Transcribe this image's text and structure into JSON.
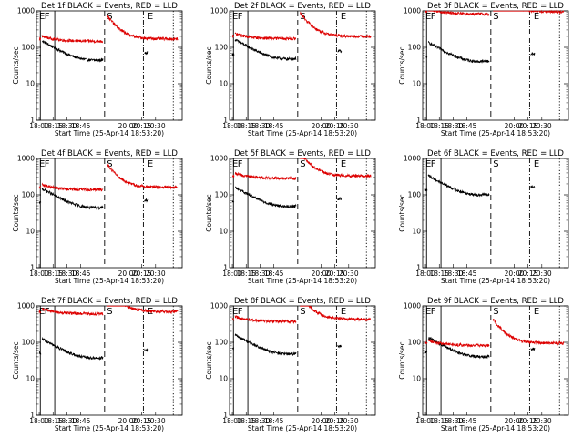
{
  "colors": {
    "events": "#000000",
    "lld": "#dd0000",
    "background": "#ffffff",
    "axes": "#000000"
  },
  "axis_common": {
    "xlabel": "Start Time (25-Apr-14 18:53:20)",
    "ylabel": "Counts/sec",
    "x_tick_labels": [
      "18:00",
      "18:15",
      "18:30",
      "18:45",
      "20:00",
      "20:15",
      "20:30"
    ],
    "y_tick_labels": [
      "1",
      "10",
      "100",
      "1000"
    ],
    "y_scale": "log",
    "ylim": [
      1,
      1000
    ],
    "marker_labels": [
      "E",
      "F",
      "S",
      "E"
    ]
  },
  "chart_data": [
    {
      "type": "line",
      "title": "Det 1f BLACK = Events, RED = LLD",
      "events": 60,
      "lld": 170
    },
    {
      "type": "line",
      "title": "Det 2f BLACK = Events, RED = LLD",
      "events": 65,
      "lld": 200
    },
    {
      "type": "line",
      "title": "Det 3f BLACK = Events, RED = LLD",
      "events": 55,
      "lld": 950
    },
    {
      "type": "line",
      "title": "Det 4f BLACK = Events, RED = LLD",
      "events": 60,
      "lld": 160
    },
    {
      "type": "line",
      "title": "Det 5f BLACK = Events, RED = LLD",
      "events": 65,
      "lld": 330
    },
    {
      "type": "line",
      "title": "Det 6f BLACK = Events, RED = LLD",
      "events": 135,
      "lld": null
    },
    {
      "type": "line",
      "title": "Det 7f BLACK = Events, RED = LLD",
      "events": 50,
      "lld": 700
    },
    {
      "type": "line",
      "title": "Det 8f BLACK = Events, RED = LLD",
      "events": 65,
      "lld": 430
    },
    {
      "type": "line",
      "title": "Det 9f BLACK = Events, RED = LLD",
      "events": 55,
      "lld": 95
    }
  ]
}
